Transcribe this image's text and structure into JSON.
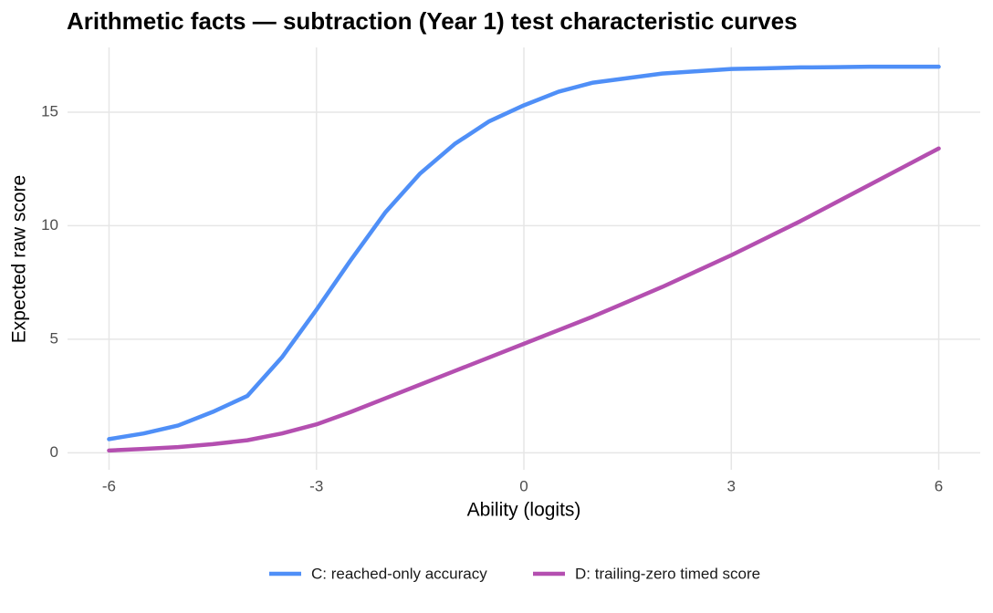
{
  "chart_data": {
    "type": "line",
    "title": "Arithmetic facts — subtraction (Year 1) test characteristic curves",
    "x_label": "Ability (logits)",
    "y_label": "Expected raw score",
    "x": [
      -6,
      -5.5,
      -5,
      -4.5,
      -4,
      -3.5,
      -3,
      -2.5,
      -2,
      -1.5,
      -1,
      -0.5,
      0,
      0.5,
      1,
      1.5,
      2,
      2.5,
      3,
      3.5,
      4,
      4.5,
      5,
      5.5,
      6
    ],
    "series": [
      {
        "name": "C: reached-only accuracy",
        "color": "#4f8ff7",
        "values": [
          0.6,
          0.85,
          1.2,
          1.8,
          2.5,
          4.2,
          6.3,
          8.5,
          10.6,
          12.3,
          13.6,
          14.6,
          15.3,
          15.9,
          16.3,
          16.5,
          16.7,
          16.8,
          16.9,
          16.93,
          16.97,
          16.98,
          17.0,
          17.0,
          17.0
        ]
      },
      {
        "name": "D: trailing-zero timed score",
        "color": "#b44fb0",
        "values": [
          0.1,
          0.17,
          0.25,
          0.38,
          0.55,
          0.85,
          1.25,
          1.8,
          2.4,
          3.0,
          3.6,
          4.2,
          4.8,
          5.4,
          6.0,
          6.65,
          7.3,
          8.0,
          8.7,
          9.45,
          10.2,
          11.0,
          11.8,
          12.6,
          13.4
        ]
      }
    ],
    "xlim": [
      -6.6,
      6.6
    ],
    "xticks": [
      -6,
      -3,
      0,
      3,
      6
    ],
    "ylim": [
      -0.75,
      17.85
    ],
    "yticks": [
      0,
      5,
      10,
      15
    ],
    "grid": true,
    "legend": "bottom"
  }
}
